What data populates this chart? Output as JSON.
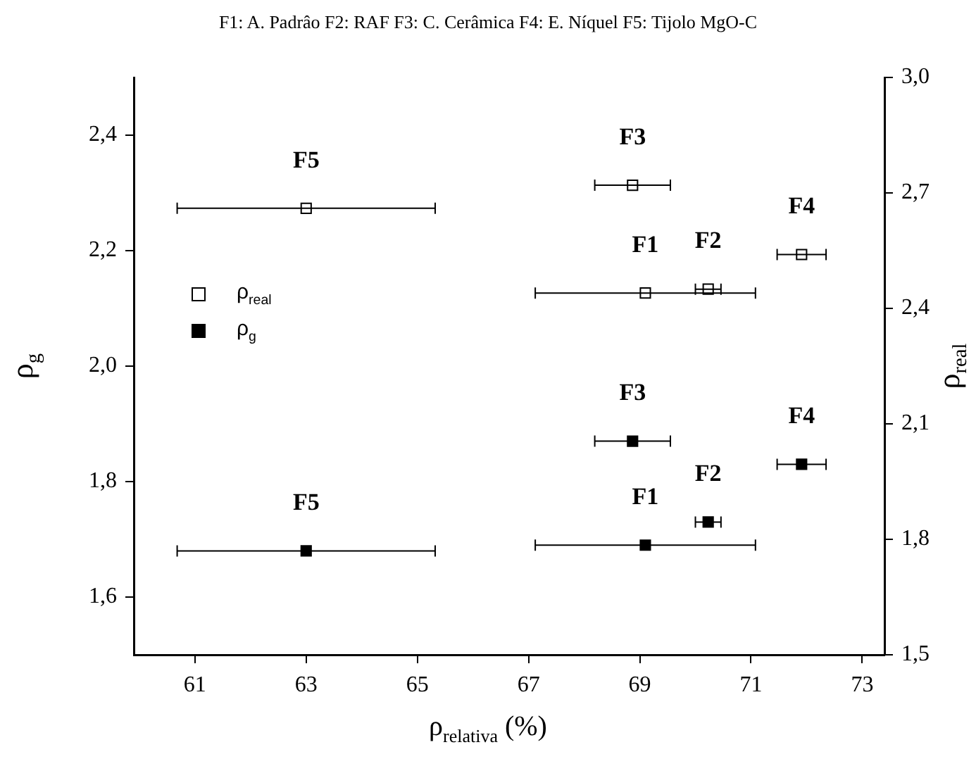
{
  "chart_data": {
    "type": "scatter",
    "title": "F1: A. Padrâo  F2: RAF  F3: C. Cerâmica  F4: E. Níquel  F5: Tijolo MgO-C",
    "xlabel": "ρ$_{relativa}$ (%)",
    "ylabel": "ρ$_{g}$",
    "y2label": "ρ$_{real}$",
    "series": [
      {
        "name": "ρ$_{real}$",
        "color": "#000000",
        "axis": "y2",
        "x": [
          69.1,
          70.23,
          68.87,
          71.91,
          63.0
        ],
        "values": [
          2.44,
          2.45,
          2.72,
          2.54,
          2.66
        ],
        "xerrors": [
          1.98,
          0.23,
          0.68,
          0.44,
          2.32
        ],
        "value_labels": [
          "F1",
          "F2",
          "F3",
          "F4",
          "F5"
        ]
      },
      {
        "name": "ρ$_{g}$",
        "color": "#000000",
        "x": [
          69.1,
          70.23,
          68.87,
          71.91,
          63.0
        ],
        "values": [
          1.69,
          1.73,
          1.87,
          1.83,
          1.68
        ],
        "xerrors": [
          1.98,
          0.23,
          0.68,
          0.44,
          2.32
        ],
        "value_labels": [
          "F1",
          "F2",
          "F3",
          "F4",
          "F5"
        ]
      }
    ],
    "xlim": [
      59.9,
      73.4
    ],
    "xticks": [
      61,
      63,
      65,
      67,
      69,
      71,
      73
    ],
    "ylim": [
      1.5,
      2.5
    ],
    "yticks": [
      {
        "value": 1.6,
        "label": "1,6"
      },
      {
        "value": 1.8,
        "label": "1,8"
      },
      {
        "value": 2.0,
        "label": "2,0"
      },
      {
        "value": 2.2,
        "label": "2,2"
      },
      {
        "value": 2.4,
        "label": "2,4"
      }
    ],
    "y2lim": [
      1.5,
      3.0
    ],
    "y2ticks": [
      {
        "value": 1.5,
        "label": "1,5"
      },
      {
        "value": 1.8,
        "label": "1,8"
      },
      {
        "value": 2.1,
        "label": "2,1"
      },
      {
        "value": 2.4,
        "label": "2,4"
      },
      {
        "value": 2.7,
        "label": "2,7"
      },
      {
        "value": 3.0,
        "label": "3,0"
      }
    ],
    "grid": false,
    "legend": "left",
    "marker": "square"
  }
}
